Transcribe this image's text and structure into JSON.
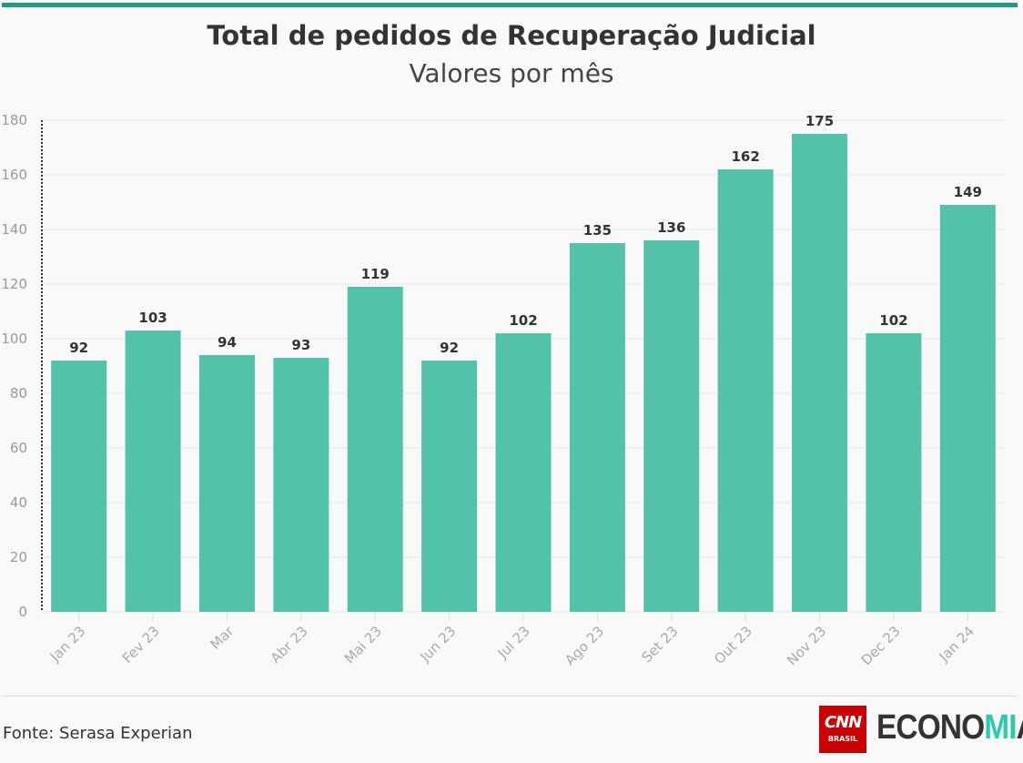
{
  "title": "Total de pedidos de Recuperação Judicial",
  "subtitle": "Valores por mês",
  "source": "Fonte: Serasa Experian",
  "logo": {
    "cnn": "CNN",
    "brasil": "BRASIL",
    "economia_prefix": "ECONO",
    "economia_suffix": "MIA"
  },
  "colors": {
    "bar": "#52c3a9",
    "accent": "#1e9e7b"
  },
  "chart_data": {
    "type": "bar",
    "categories": [
      "Jan 23",
      "Fev 23",
      "Mar",
      "Abr 23",
      "Mai 23",
      "Jun 23",
      "Jul 23",
      "Ago 23",
      "Set 23",
      "Out 23",
      "Nov 23",
      "Dec 23",
      "Jan 24"
    ],
    "values": [
      92,
      103,
      94,
      93,
      119,
      92,
      102,
      135,
      136,
      162,
      175,
      102,
      149
    ],
    "title": "Total de pedidos de Recuperação Judicial",
    "subtitle": "Valores por mês",
    "ylim": [
      0,
      180
    ],
    "yticks": [
      0,
      20,
      40,
      60,
      80,
      100,
      120,
      140,
      160,
      180
    ],
    "grid": true,
    "data_labels": true
  }
}
